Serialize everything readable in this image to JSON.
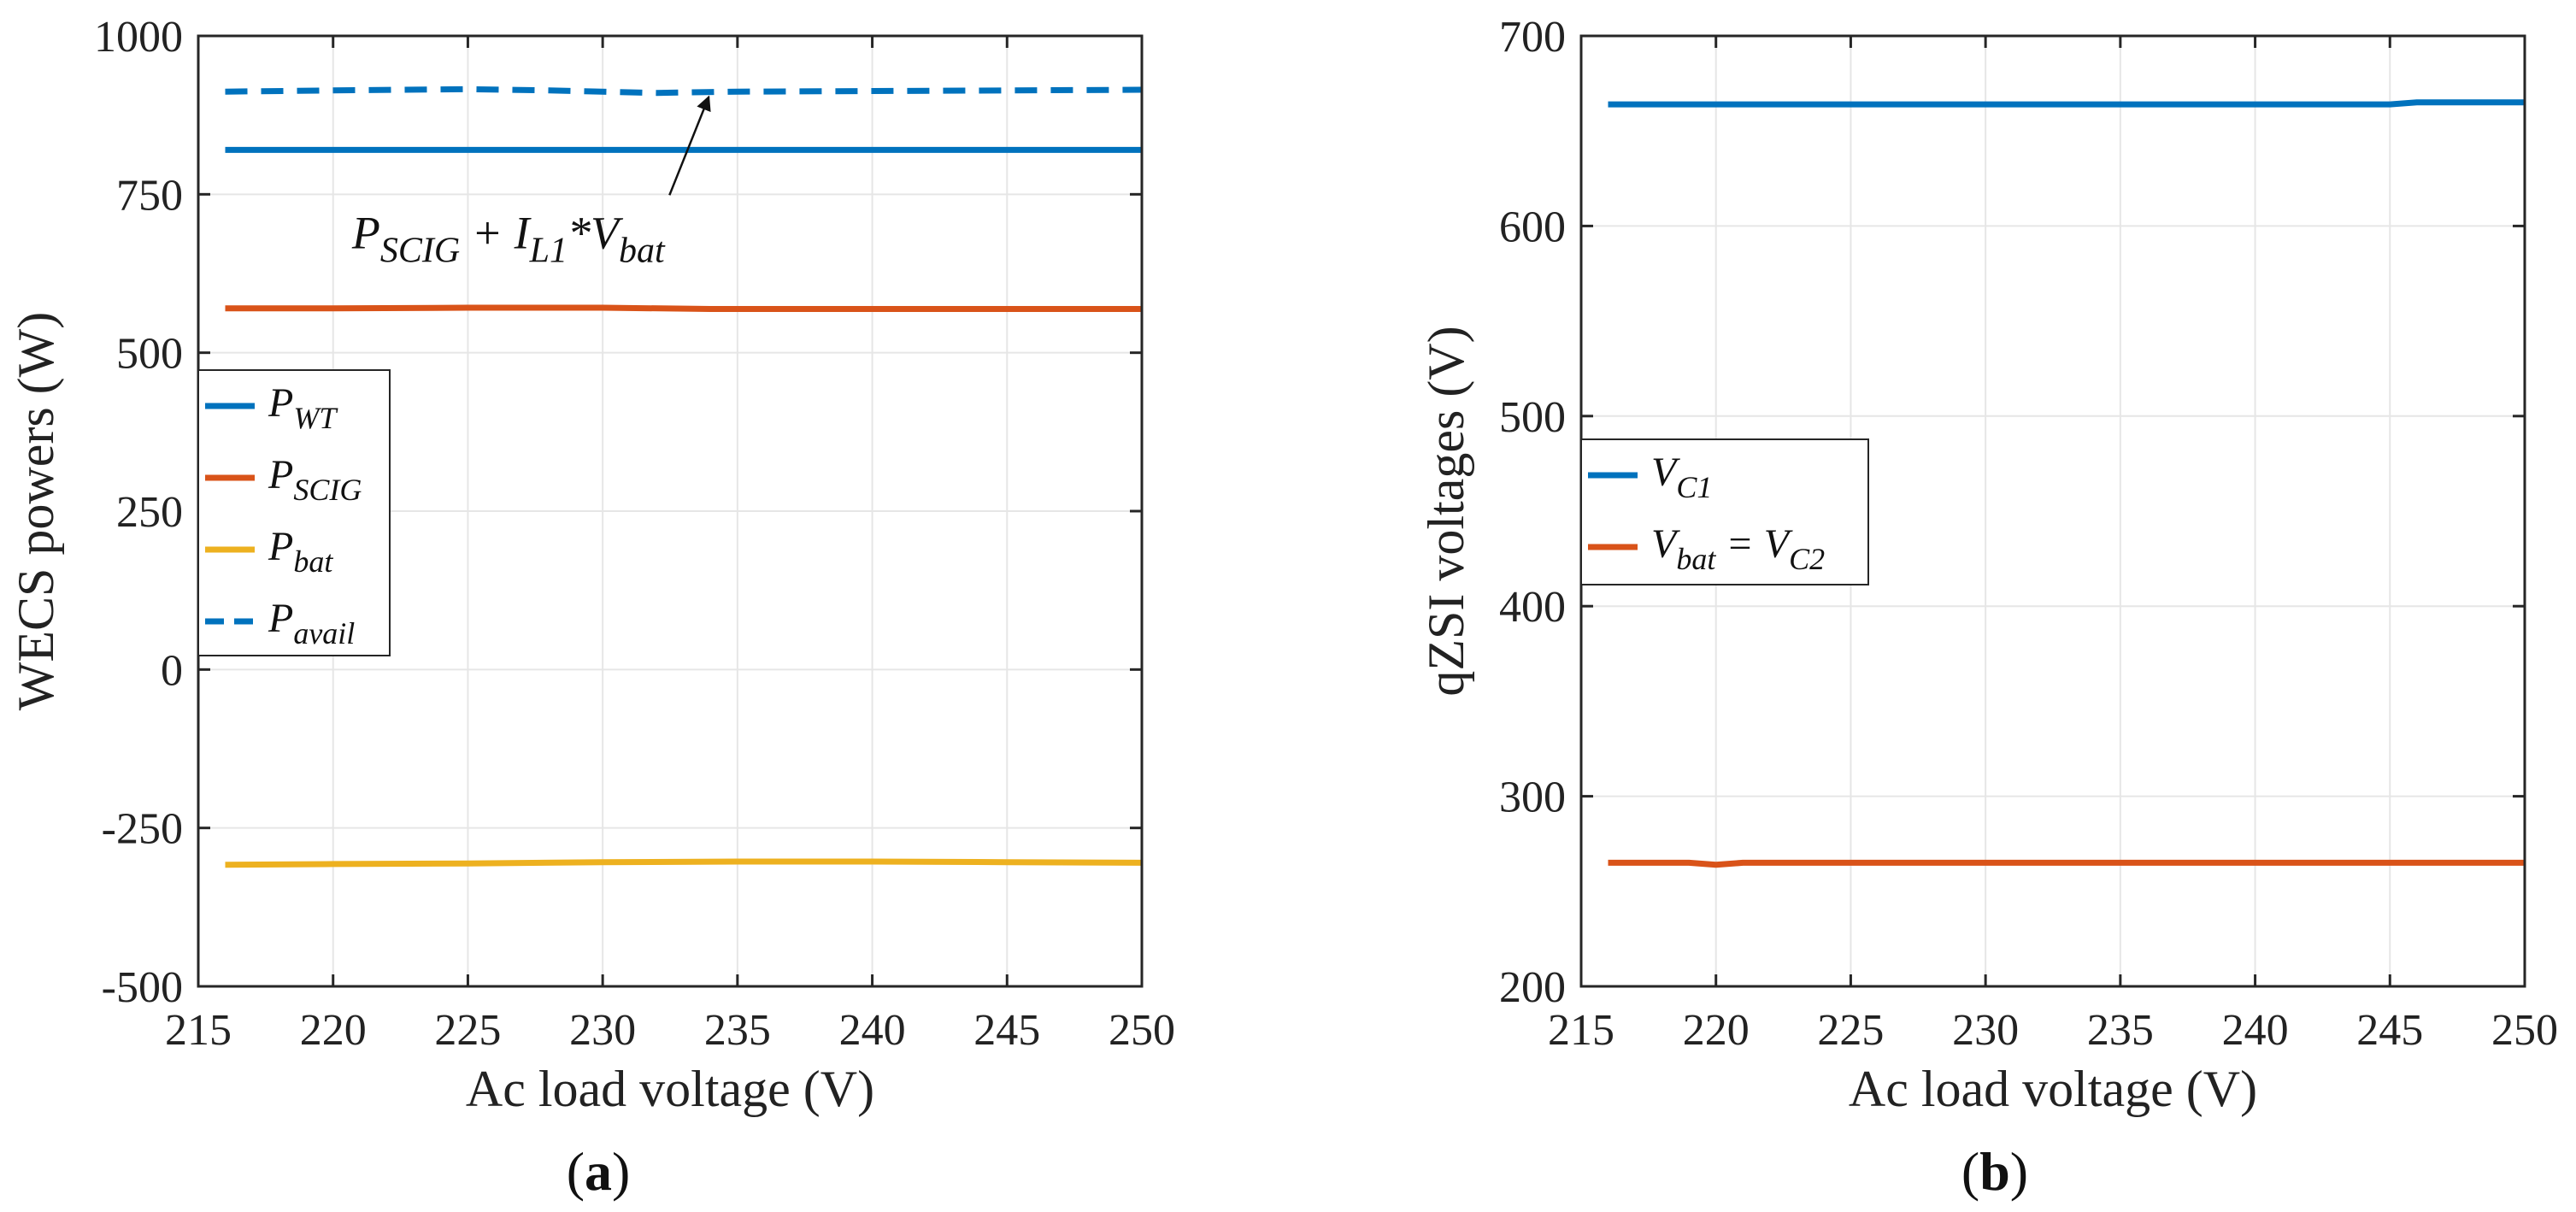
{
  "chart_data": [
    {
      "type": "line",
      "panel_label": "a",
      "xlabel": "Ac load voltage (V)",
      "ylabel": "WECS powers (W)",
      "xlim": [
        215,
        250
      ],
      "ylim": [
        -500,
        1000
      ],
      "xticks": [
        215,
        220,
        225,
        230,
        235,
        240,
        245,
        250
      ],
      "yticks": [
        -500,
        -250,
        0,
        250,
        500,
        750,
        1000
      ],
      "ytick_labels": [
        "-500",
        "-250",
        "0",
        "250",
        "500",
        "750",
        "1000"
      ],
      "grid": true,
      "legend_position": "center-left",
      "colors": {
        "blue": "#0072BD",
        "orange": "#D95319",
        "yellow": "#EDB120"
      },
      "series": [
        {
          "name": "P_WT",
          "label_main": "P",
          "label_sub": "WT",
          "color": "#0072BD",
          "dash": false,
          "x": [
            216,
            220,
            225,
            230,
            235,
            240,
            245,
            250
          ],
          "y": [
            820,
            820,
            820,
            820,
            820,
            820,
            820,
            820
          ]
        },
        {
          "name": "P_SCIG",
          "label_main": "P",
          "label_sub": "SCIG",
          "color": "#D95319",
          "dash": false,
          "x": [
            216,
            220,
            225,
            230,
            234,
            240,
            245,
            250
          ],
          "y": [
            570,
            570,
            571,
            571,
            569,
            569,
            569,
            569
          ]
        },
        {
          "name": "P_bat",
          "label_main": "P",
          "label_sub": "bat",
          "color": "#EDB120",
          "dash": false,
          "x": [
            216,
            220,
            225,
            230,
            235,
            240,
            245,
            250
          ],
          "y": [
            -308,
            -307,
            -306,
            -304,
            -303,
            -303,
            -304,
            -305
          ]
        },
        {
          "name": "P_avail",
          "label_main": "P",
          "label_sub": "avail",
          "color": "#0072BD",
          "dash": true,
          "x": [
            216,
            220,
            225,
            228,
            232,
            235,
            240,
            245,
            250
          ],
          "y": [
            912,
            914,
            916,
            914,
            910,
            912,
            913,
            914,
            915
          ]
        }
      ],
      "annotation": {
        "parts": [
          {
            "t": "P",
            "sub": false
          },
          {
            "t": "SCIG",
            "sub": true
          },
          {
            "t": " + I",
            "sub": false
          },
          {
            "t": "L1",
            "sub": true
          },
          {
            "t": "*V",
            "sub": false
          },
          {
            "t": "bat",
            "sub": true
          }
        ],
        "arrow_target": [
          234,
          912
        ],
        "text_anchor": [
          226.5,
          665
        ]
      }
    },
    {
      "type": "line",
      "panel_label": "b",
      "xlabel": "Ac load voltage (V)",
      "ylabel": "qZSI voltages (V)",
      "xlim": [
        215,
        250
      ],
      "ylim": [
        200,
        700
      ],
      "xticks": [
        215,
        220,
        225,
        230,
        235,
        240,
        245,
        250
      ],
      "yticks": [
        200,
        300,
        400,
        500,
        600,
        700
      ],
      "ytick_labels": [
        "200",
        "300",
        "400",
        "500",
        "600",
        "700"
      ],
      "grid": true,
      "legend_position": "center-left",
      "colors": {
        "blue": "#0072BD",
        "orange": "#D95319"
      },
      "series": [
        {
          "name": "V_C1",
          "label_main": "V",
          "label_sub": "C1",
          "label_tail": [],
          "color": "#0072BD",
          "dash": false,
          "x": [
            216,
            220,
            225,
            230,
            235,
            240,
            245,
            246,
            250
          ],
          "y": [
            664,
            664,
            664,
            664,
            664,
            664,
            664,
            665,
            665
          ]
        },
        {
          "name": "V_bat = V_C2",
          "label_main": "V",
          "label_sub": "bat",
          "label_tail": [
            {
              "t": " = V",
              "sub": false
            },
            {
              "t": "C2",
              "sub": true
            }
          ],
          "color": "#D95319",
          "dash": false,
          "x": [
            216,
            219,
            220,
            221,
            225,
            230,
            235,
            240,
            245,
            250
          ],
          "y": [
            265,
            265,
            264,
            265,
            265,
            265,
            265,
            265,
            265,
            265
          ]
        }
      ]
    }
  ]
}
